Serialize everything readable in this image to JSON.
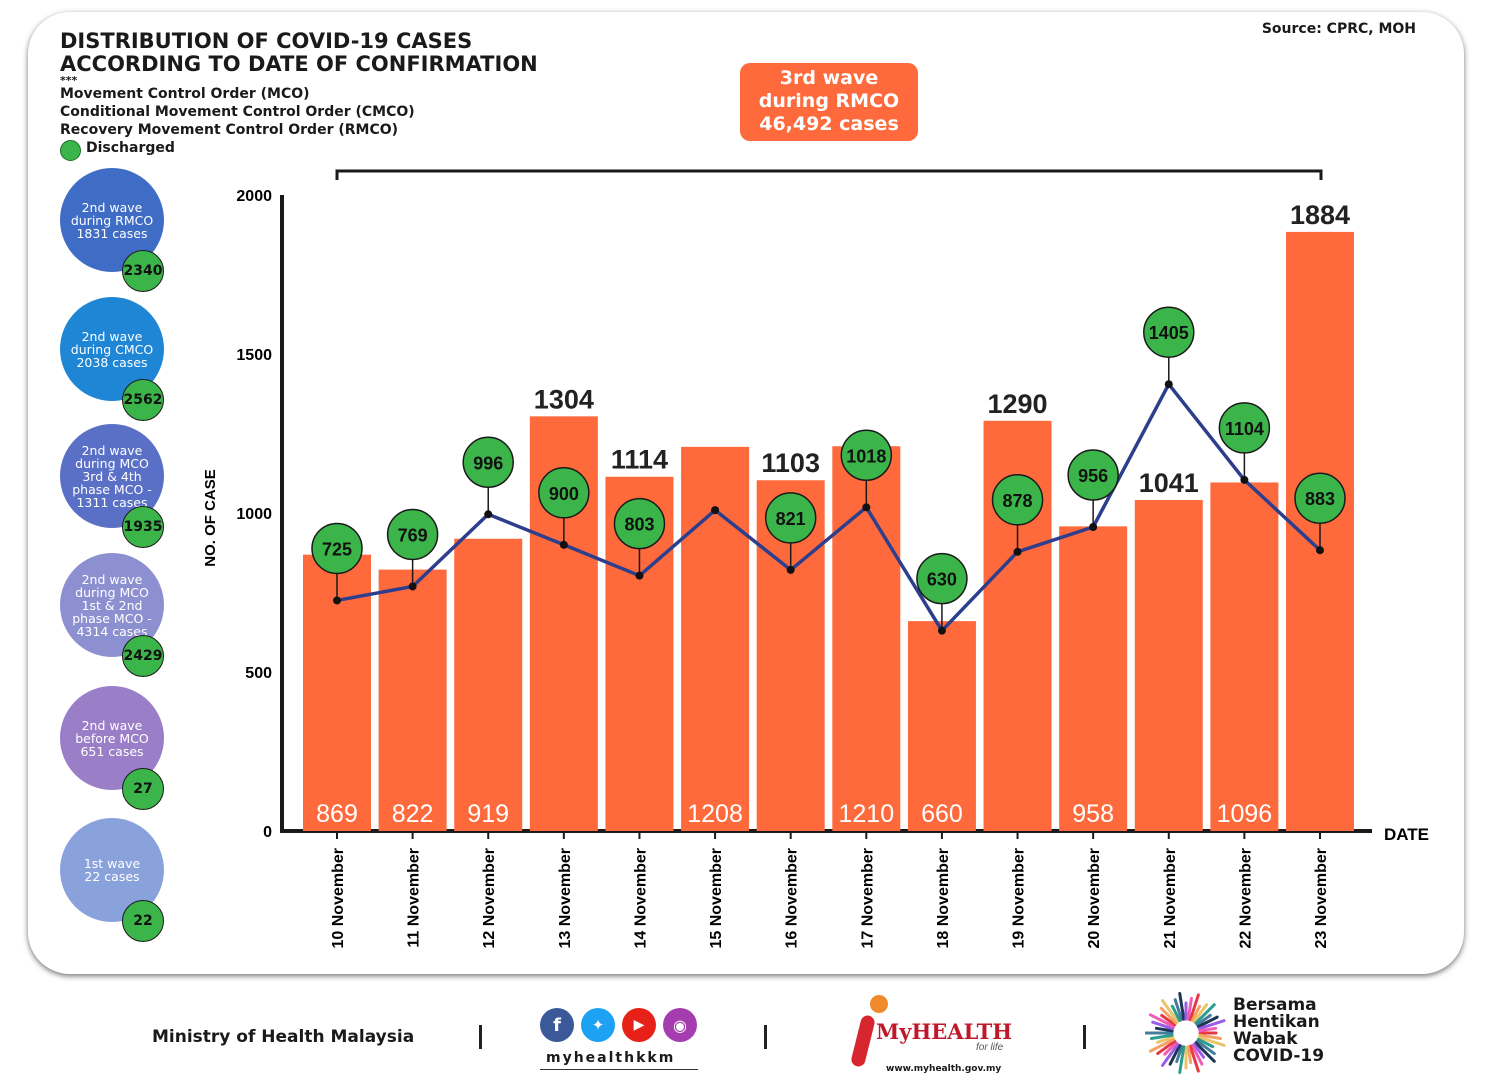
{
  "title_line1": "DISTRIBUTION OF COVID-19 CASES",
  "title_line2": "ACCORDING TO DATE OF CONFIRMATION",
  "stars": "***",
  "legend": {
    "mco": "Movement Control Order (MCO)",
    "cmco": "Conditional Movement Control Order (CMCO)",
    "rmco": "Recovery Movement Control Order (RMCO)",
    "discharged": "Discharged"
  },
  "source": "Source: CPRC, MOH",
  "wave3": {
    "line1": "3rd wave",
    "line2": "during RMCO",
    "line3": "46,492 cases"
  },
  "waves": [
    {
      "lines": [
        "2nd wave",
        "during RMCO",
        "1831 cases"
      ],
      "discharged": "2340",
      "color": "#3f6cc4"
    },
    {
      "lines": [
        "2nd wave",
        "during CMCO",
        "2038 cases"
      ],
      "discharged": "2562",
      "color": "#1f86d6"
    },
    {
      "lines": [
        "2nd wave",
        "during MCO",
        "3rd & 4th",
        "phase MCO -",
        "1311 cases"
      ],
      "discharged": "1935",
      "color": "#5a6fc6"
    },
    {
      "lines": [
        "2nd wave",
        "during MCO",
        "1st & 2nd",
        "phase MCO -",
        "4314 cases"
      ],
      "discharged": "2429",
      "color": "#8c8fd0"
    },
    {
      "lines": [
        "2nd wave",
        "before MCO",
        "651 cases"
      ],
      "discharged": "27",
      "color": "#9a7ec8"
    },
    {
      "lines": [
        "1st wave",
        "22 cases"
      ],
      "discharged": "22",
      "color": "#8aa2dc"
    }
  ],
  "chart_data": {
    "type": "bar",
    "categories": [
      "10 November",
      "11 November",
      "12 November",
      "13 November",
      "14 November",
      "15 November",
      "16 November",
      "17 November",
      "18 November",
      "19 November",
      "20 November",
      "21 November",
      "22 November",
      "23 November"
    ],
    "series": [
      {
        "type": "bar",
        "values": [
          869,
          822,
          919,
          1304,
          1114,
          1208,
          1103,
          1210,
          660,
          1290,
          958,
          1041,
          1096,
          1884
        ],
        "color": "#ff6a3d"
      },
      {
        "name": "Discharged",
        "type": "line",
        "values": [
          725,
          769,
          996,
          900,
          803,
          1009,
          821,
          1018,
          630,
          878,
          956,
          1405,
          1104,
          883
        ],
        "color": "#2c3e8c"
      }
    ],
    "discharged_labels": [
      "725",
      "769",
      "996",
      "900",
      "803",
      "",
      "821",
      "1018",
      "630",
      "878",
      "956",
      "1405",
      "1104",
      "883"
    ],
    "bar_label_positions": [
      "inside",
      "inside",
      "inside",
      "top",
      "top",
      "inside",
      "top",
      "inside",
      "inside",
      "top",
      "inside",
      "top",
      "inside",
      "top"
    ],
    "ylabel": "NO. OF CASE",
    "xlabel": "DATE",
    "yticks": [
      "0",
      "500",
      "1000",
      "1500",
      "2000"
    ],
    "ylim": [
      0,
      2000
    ]
  },
  "footer": {
    "ministry": "Ministry of Health Malaysia",
    "handle": "myhealthkkm",
    "myhealth": "MyHEALTH",
    "forlife": "for life",
    "url": "www.myhealth.gov.my",
    "campaign": [
      "Bersama",
      "Hentikan",
      "Wabak",
      "COVID-19"
    ]
  }
}
